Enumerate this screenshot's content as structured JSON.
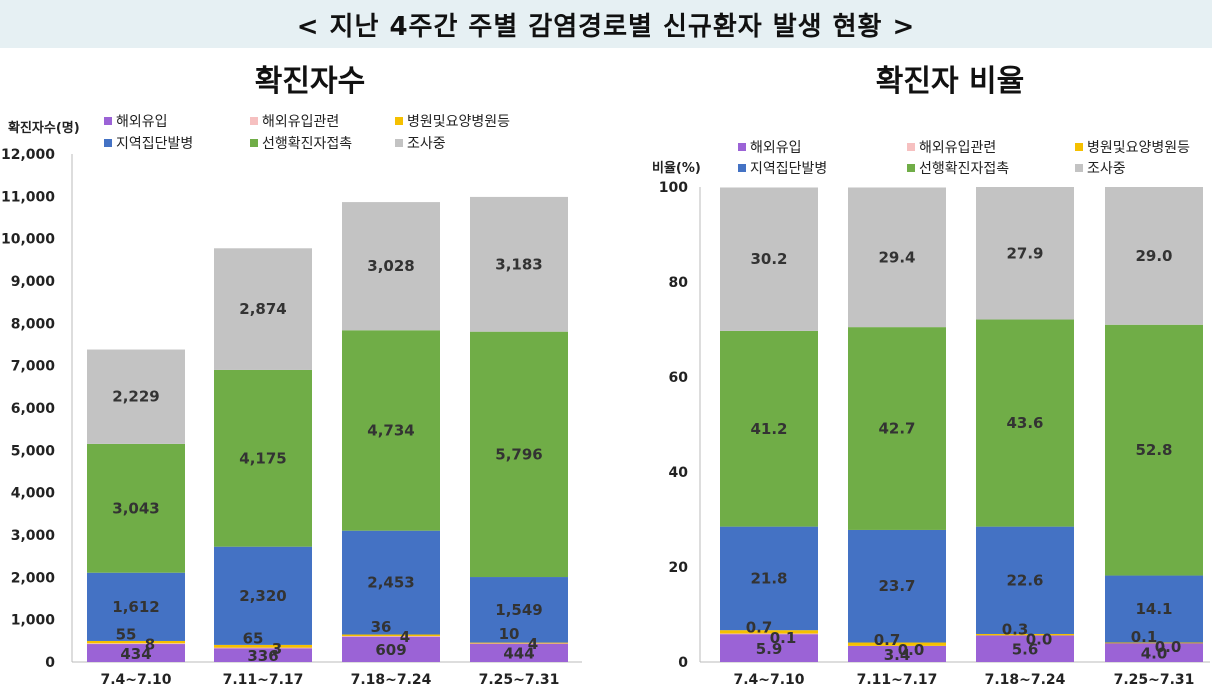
{
  "page_title": "< 지난 4주간 주별 감염경로별 신규환자 발생 현황 >",
  "colors": {
    "해외유입": "#9b63d6",
    "해외유입관련": "#f6c0c0",
    "병원및요양병원등": "#f5c000",
    "지역집단발병": "#4472c4",
    "선행확진자접촉": "#70ad47",
    "조사중": "#c3c3c3"
  },
  "chart_data": [
    {
      "type": "bar",
      "stacked": true,
      "title": "확진자수",
      "ylabel": "확진자수(명)",
      "ylim": [
        0,
        12000
      ],
      "yticks": [
        "0",
        "1,000",
        "2,000",
        "3,000",
        "4,000",
        "5,000",
        "6,000",
        "7,000",
        "8,000",
        "9,000",
        "10,000",
        "11,000",
        "12,000"
      ],
      "categories": [
        "7.4~7.10",
        "7.11~7.17",
        "7.18~7.24",
        "7.25~7.31"
      ],
      "legend": [
        "해외유입",
        "해외유입관련",
        "병원및요양병원등",
        "지역집단발병",
        "선행확진자접촉",
        "조사중"
      ],
      "series": [
        {
          "name": "해외유입",
          "values": [
            434,
            336,
            609,
            444
          ],
          "labels": [
            "434",
            "336",
            "609",
            "444"
          ]
        },
        {
          "name": "해외유입관련",
          "values": [
            8,
            3,
            4,
            4
          ],
          "labels": [
            "8",
            "3",
            "4",
            "4"
          ]
        },
        {
          "name": "병원및요양병원등",
          "values": [
            55,
            65,
            36,
            10
          ],
          "labels": [
            "55",
            "65",
            "36",
            "10"
          ]
        },
        {
          "name": "지역집단발병",
          "values": [
            1612,
            2320,
            2453,
            1549
          ],
          "labels": [
            "1,612",
            "2,320",
            "2,453",
            "1,549"
          ]
        },
        {
          "name": "선행확진자접촉",
          "values": [
            3043,
            4175,
            4734,
            5796
          ],
          "labels": [
            "3,043",
            "4,175",
            "4,734",
            "5,796"
          ]
        },
        {
          "name": "조사중",
          "values": [
            2229,
            2874,
            3028,
            3183
          ],
          "labels": [
            "2,229",
            "2,874",
            "3,028",
            "3,183"
          ]
        }
      ]
    },
    {
      "type": "bar",
      "stacked": true,
      "title": "확진자 비율",
      "ylabel": "비율(%)",
      "ylim": [
        0,
        100
      ],
      "yticks": [
        "0",
        "20",
        "40",
        "60",
        "80",
        "100"
      ],
      "categories": [
        "7.4~7.10",
        "7.11~7.17",
        "7.18~7.24",
        "7.25~7.31"
      ],
      "legend": [
        "해외유입",
        "해외유입관련",
        "병원및요양병원등",
        "지역집단발병",
        "선행확진자접촉",
        "조사중"
      ],
      "series": [
        {
          "name": "해외유입",
          "values": [
            5.9,
            3.4,
            5.6,
            4.0
          ],
          "labels": [
            "5.9",
            "3.4",
            "5.6",
            "4.0"
          ]
        },
        {
          "name": "해외유입관련",
          "values": [
            0.1,
            0.0,
            0.0,
            0.0
          ],
          "labels": [
            "0.1",
            "0.0",
            "0.0",
            "0.0"
          ]
        },
        {
          "name": "병원및요양병원등",
          "values": [
            0.7,
            0.7,
            0.3,
            0.1
          ],
          "labels": [
            "0.7",
            "0.7",
            "0.3",
            "0.1"
          ]
        },
        {
          "name": "지역집단발병",
          "values": [
            21.8,
            23.7,
            22.6,
            14.1
          ],
          "labels": [
            "21.8",
            "23.7",
            "22.6",
            "14.1"
          ]
        },
        {
          "name": "선행확진자접촉",
          "values": [
            41.2,
            42.7,
            43.6,
            52.8
          ],
          "labels": [
            "41.2",
            "42.7",
            "43.6",
            "52.8"
          ]
        },
        {
          "name": "조사중",
          "values": [
            30.2,
            29.4,
            27.9,
            29.0
          ],
          "labels": [
            "30.2",
            "29.4",
            "27.9",
            "29.0"
          ]
        }
      ]
    }
  ]
}
